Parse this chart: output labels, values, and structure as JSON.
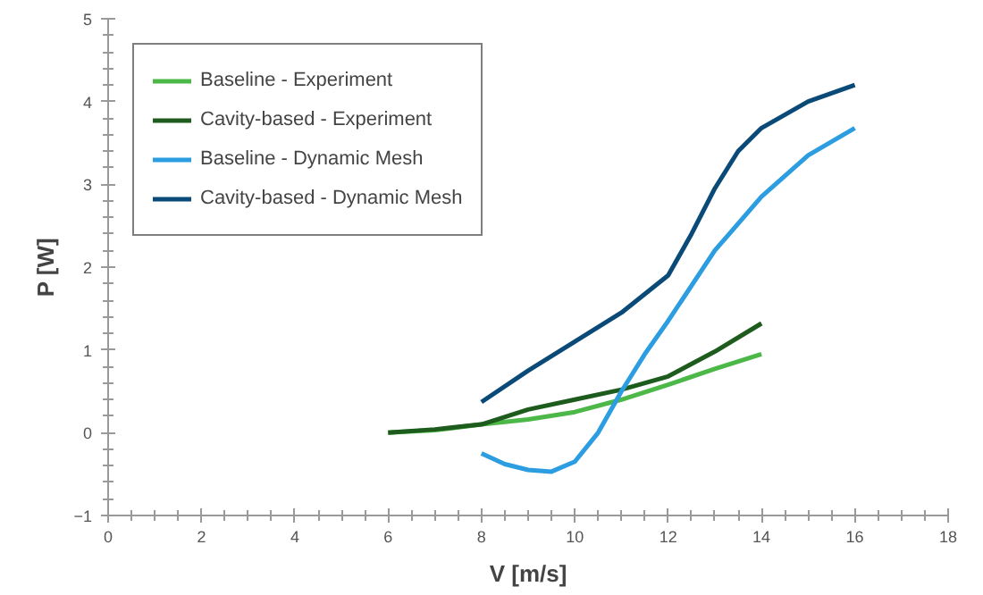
{
  "chart_data": {
    "type": "line",
    "xlabel": "V [m/s]",
    "ylabel": "P [W]",
    "xlim": [
      0,
      18
    ],
    "xticks": [
      0,
      2,
      4,
      6,
      8,
      10,
      12,
      14,
      16,
      18
    ],
    "ylim": [
      -1,
      5
    ],
    "yticks": [
      -1,
      0,
      1,
      2,
      3,
      4,
      5
    ],
    "grid": false,
    "legend": "top left",
    "marker": "none",
    "line_style": "solid",
    "series": [
      {
        "name": "Baseline - Experiment",
        "color": "#4cb848",
        "x": [
          6,
          7,
          8,
          9,
          10,
          11,
          12,
          13,
          14
        ],
        "values": [
          0,
          0.03,
          0.1,
          0.16,
          0.25,
          0.4,
          0.58,
          0.77,
          0.95
        ]
      },
      {
        "name": "Cavity-based - Experiment",
        "color": "#1e5c1e",
        "x": [
          6,
          7,
          8,
          9,
          10,
          11,
          12,
          13,
          14
        ],
        "values": [
          0,
          0.04,
          0.1,
          0.28,
          0.4,
          0.52,
          0.68,
          0.98,
          1.32
        ]
      },
      {
        "name": "Baseline - Dynamic Mesh",
        "color": "#2b9de0",
        "x": [
          8,
          8.5,
          9,
          9.5,
          10,
          10.5,
          11,
          11.5,
          12,
          13,
          14,
          15,
          16
        ],
        "values": [
          -0.25,
          -0.38,
          -0.45,
          -0.47,
          -0.35,
          0,
          0.5,
          0.95,
          1.35,
          2.2,
          2.85,
          3.35,
          3.68
        ]
      },
      {
        "name": "Cavity-based - Dynamic Mesh",
        "color": "#0a4a78",
        "x": [
          8,
          9,
          10,
          11,
          12,
          12.5,
          13,
          13.5,
          14,
          15,
          16
        ],
        "values": [
          0.37,
          0.75,
          1.1,
          1.45,
          1.9,
          2.4,
          2.95,
          3.4,
          3.68,
          4.0,
          4.2
        ]
      }
    ]
  }
}
